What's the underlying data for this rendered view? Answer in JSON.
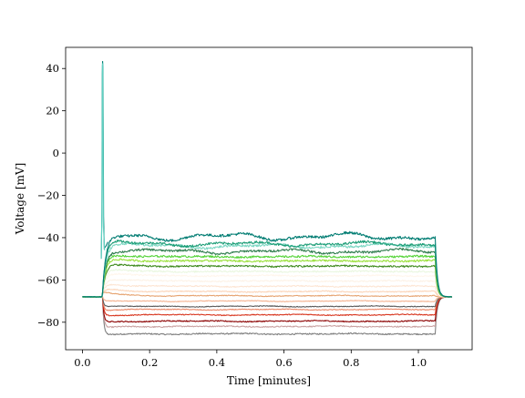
{
  "chart_data": {
    "type": "line",
    "xlabel": "Time [minutes]",
    "ylabel": "Voltage [mV]",
    "xlim": [
      -0.05,
      1.16
    ],
    "ylim": [
      -93,
      50
    ],
    "xticks": [
      0.0,
      0.2,
      0.4,
      0.6,
      0.8,
      1.0
    ],
    "xtick_labels": [
      "0.0",
      "0.2",
      "0.4",
      "0.6",
      "0.8",
      "1.0"
    ],
    "yticks": [
      -80,
      -60,
      -40,
      -20,
      0,
      20,
      40
    ],
    "ytick_labels": [
      "−80",
      "−60",
      "−40",
      "−20",
      "0",
      "20",
      "40"
    ],
    "grid": false,
    "stimulus_window": [
      0.06,
      1.05
    ],
    "baseline": -68,
    "spike_peak": 43.5,
    "series": [
      {
        "steady": -85.5,
        "color": "#7f7f7f"
      },
      {
        "steady": -82.0,
        "color": "#c9a2a2"
      },
      {
        "steady": -79.5,
        "color": "#8b0000"
      },
      {
        "steady": -76.5,
        "color": "#d8361f"
      },
      {
        "steady": -74.0,
        "color": "#e9896a"
      },
      {
        "steady": -72.5,
        "color": "#5a5a5a"
      },
      {
        "steady": -70.0,
        "color": "#f4b18e"
      },
      {
        "steady": -67.5,
        "color": "#e6a370"
      },
      {
        "steady": -65.5,
        "color": "#fbd3b6"
      },
      {
        "steady": -63.0,
        "color": "#fde5d3"
      },
      {
        "steady": -60.5,
        "color": "#fdf2e6"
      },
      {
        "steady": -58.0,
        "color": "#fff6ec"
      },
      {
        "steady": -56.0,
        "color": "#eaf7e0"
      },
      {
        "steady": -53.5,
        "color": "#3f8a1e"
      },
      {
        "steady": -51.0,
        "color": "#9ae03a"
      },
      {
        "steady": -49.0,
        "color": "#56d43a"
      },
      {
        "steady": -46.5,
        "color": "#2f7d4e"
      },
      {
        "steady": -44.0,
        "color": "#7ed8c4"
      },
      {
        "steady": -43.0,
        "color": "#1e9e78"
      },
      {
        "steady": -39.5,
        "color": "#007c72"
      }
    ],
    "spike_color": "#5fd1c2"
  }
}
